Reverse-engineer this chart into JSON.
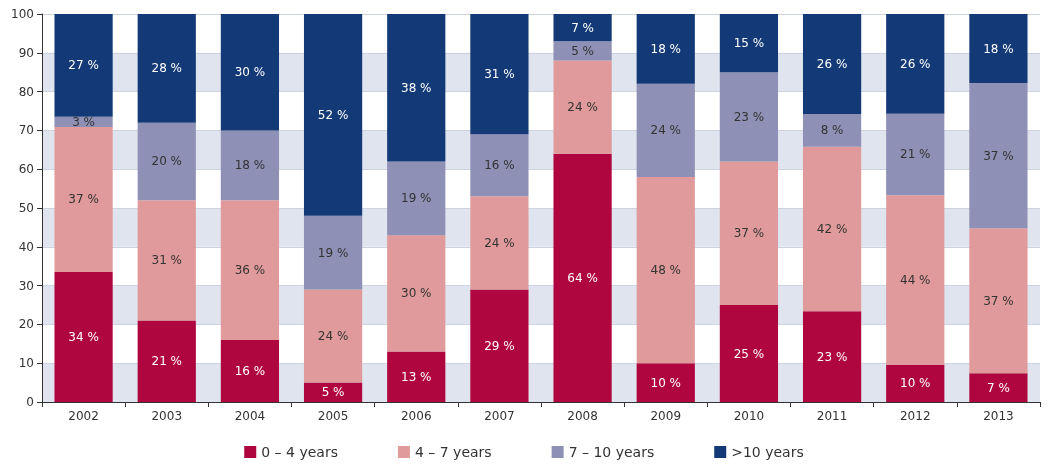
{
  "chart_data": {
    "type": "bar",
    "stacked": true,
    "categories": [
      "2002",
      "2003",
      "2004",
      "2005",
      "2006",
      "2007",
      "2008",
      "2009",
      "2010",
      "2011",
      "2012",
      "2013"
    ],
    "series": [
      {
        "name": "0 – 4 years",
        "color": "#b0063f",
        "values": [
          33.5,
          21,
          16,
          5,
          13,
          29,
          64,
          10,
          25,
          23.4,
          9.6,
          7.4
        ],
        "value_labels": [
          "34 %",
          "21 %",
          "16 %",
          "5 %",
          "13 %",
          "29 %",
          "64 %",
          "10 %",
          "25 %",
          "23 %",
          "10 %",
          "7 %"
        ]
      },
      {
        "name": "4 – 7 years",
        "color": "#e09a9b",
        "values": [
          37.4,
          31,
          36,
          24,
          30,
          24,
          24,
          48,
          37,
          42.4,
          43.7,
          37.4
        ],
        "value_labels": [
          "37 %",
          "31 %",
          "36 %",
          "24 %",
          "30 %",
          "24 %",
          "24 %",
          "48 %",
          "37 %",
          "42 %",
          "44 %",
          "37 %"
        ]
      },
      {
        "name": "7 – 10 years",
        "color": "#8e90b5",
        "values": [
          2.6,
          20,
          18,
          19,
          19,
          16,
          5,
          24,
          23,
          8.4,
          21,
          37.4
        ],
        "value_labels": [
          "3 %",
          "20 %",
          "18 %",
          "19 %",
          "19 %",
          "16 %",
          "5 %",
          "24 %",
          "23 %",
          "8 %",
          "21 %",
          "37 %"
        ]
      },
      {
        "name": ">10 years",
        "color": "#133a76",
        "values": [
          26.5,
          28,
          30,
          52,
          38,
          31,
          7,
          18,
          15,
          25.8,
          25.7,
          17.8
        ],
        "value_labels": [
          "27 %",
          "28 %",
          "30 %",
          "52 %",
          "38 %",
          "31 %",
          "7 %",
          "18 %",
          "15 %",
          "26 %",
          "26 %",
          "18 %"
        ]
      }
    ],
    "ylim": [
      0,
      100
    ],
    "yticks": [
      0,
      10,
      20,
      30,
      40,
      50,
      60,
      70,
      80,
      90,
      100
    ],
    "grid": "y",
    "legend": "bottom"
  }
}
